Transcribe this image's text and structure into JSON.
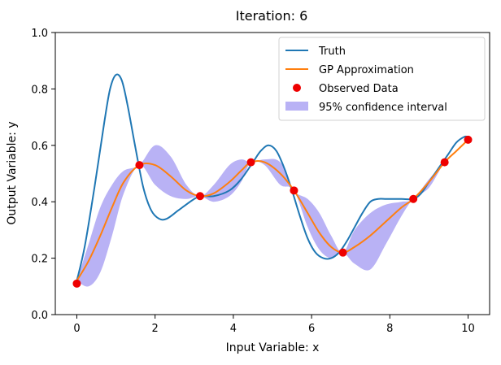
{
  "chart_data": {
    "type": "line",
    "title": "Iteration: 6",
    "xlabel": "Input Variable: x",
    "ylabel": "Output Variable: y",
    "xlim": [
      -0.55,
      10.55
    ],
    "ylim": [
      0.0,
      1.0
    ],
    "xticks": [
      0,
      2,
      4,
      6,
      8,
      10
    ],
    "yticks": [
      0.0,
      0.2,
      0.4,
      0.6,
      0.8,
      1.0
    ],
    "xtick_labels": [
      "0",
      "2",
      "4",
      "6",
      "8",
      "10"
    ],
    "ytick_labels": [
      "0.0",
      "0.2",
      "0.4",
      "0.6",
      "0.8",
      "1.0"
    ],
    "grid": false,
    "legend_position": "top-right",
    "legend": [
      {
        "label": "Truth",
        "kind": "line",
        "color": "#1f77b4"
      },
      {
        "label": "GP Approximation",
        "kind": "line",
        "color": "#ff7f0e"
      },
      {
        "label": "Observed Data",
        "kind": "marker",
        "color": "#ee0000"
      },
      {
        "label": "95% confidence interval",
        "kind": "patch",
        "color": "#b9b2f5"
      }
    ],
    "series": [
      {
        "name": "Truth",
        "color": "#1f77b4",
        "x": [
          0,
          0.2,
          0.45,
          0.7,
          0.85,
          1.0,
          1.15,
          1.3,
          1.5,
          1.7,
          1.9,
          2.1,
          2.3,
          2.6,
          3.0,
          3.2,
          3.5,
          3.9,
          4.2,
          4.5,
          4.7,
          4.9,
          5.1,
          5.3,
          5.5,
          5.7,
          5.9,
          6.1,
          6.3,
          6.5,
          6.7,
          6.9,
          7.1,
          7.3,
          7.5,
          7.7,
          7.9,
          8.1,
          8.3,
          8.6,
          8.8,
          9.0,
          9.3,
          9.5,
          9.7,
          9.9,
          10.0
        ],
        "y": [
          0.12,
          0.24,
          0.45,
          0.68,
          0.8,
          0.85,
          0.83,
          0.74,
          0.59,
          0.45,
          0.37,
          0.34,
          0.34,
          0.37,
          0.41,
          0.42,
          0.42,
          0.44,
          0.48,
          0.54,
          0.58,
          0.6,
          0.58,
          0.52,
          0.44,
          0.35,
          0.27,
          0.22,
          0.2,
          0.2,
          0.22,
          0.26,
          0.31,
          0.36,
          0.4,
          0.41,
          0.41,
          0.41,
          0.41,
          0.41,
          0.43,
          0.47,
          0.53,
          0.57,
          0.61,
          0.63,
          0.63
        ]
      },
      {
        "name": "GP Approximation",
        "color": "#ff7f0e",
        "x": [
          0,
          0.3,
          0.6,
          0.9,
          1.2,
          1.6,
          2.0,
          2.4,
          2.8,
          3.15,
          3.5,
          3.9,
          4.2,
          4.45,
          4.8,
          5.2,
          5.55,
          5.9,
          6.2,
          6.5,
          6.8,
          7.1,
          7.5,
          7.9,
          8.3,
          8.6,
          9.0,
          9.4,
          9.7,
          10.0
        ],
        "y": [
          0.12,
          0.19,
          0.28,
          0.38,
          0.47,
          0.53,
          0.53,
          0.49,
          0.44,
          0.42,
          0.43,
          0.47,
          0.51,
          0.54,
          0.54,
          0.5,
          0.44,
          0.36,
          0.29,
          0.24,
          0.22,
          0.24,
          0.28,
          0.33,
          0.38,
          0.41,
          0.47,
          0.54,
          0.58,
          0.62
        ]
      }
    ],
    "confidence_interval": {
      "name": "95% confidence interval",
      "color": "#b9b2f5",
      "x": [
        0,
        0.3,
        0.6,
        0.9,
        1.2,
        1.6,
        2.0,
        2.4,
        2.8,
        3.15,
        3.5,
        3.9,
        4.2,
        4.45,
        4.8,
        5.2,
        5.55,
        5.9,
        6.2,
        6.5,
        6.8,
        7.1,
        7.5,
        7.9,
        8.3,
        8.6,
        9.0,
        9.4,
        9.7,
        10.0
      ],
      "upper": [
        0.12,
        0.25,
        0.38,
        0.46,
        0.51,
        0.53,
        0.6,
        0.56,
        0.46,
        0.42,
        0.46,
        0.53,
        0.55,
        0.54,
        0.55,
        0.54,
        0.44,
        0.41,
        0.36,
        0.28,
        0.22,
        0.3,
        0.36,
        0.39,
        0.4,
        0.41,
        0.48,
        0.54,
        0.58,
        0.62
      ],
      "lower": [
        0.12,
        0.1,
        0.15,
        0.28,
        0.43,
        0.53,
        0.46,
        0.42,
        0.41,
        0.42,
        0.4,
        0.42,
        0.47,
        0.54,
        0.53,
        0.46,
        0.44,
        0.31,
        0.23,
        0.2,
        0.22,
        0.18,
        0.16,
        0.25,
        0.35,
        0.41,
        0.45,
        0.54,
        0.58,
        0.62
      ]
    },
    "observed": {
      "name": "Observed Data",
      "color": "#ee0000",
      "x": [
        0.0,
        1.6,
        3.15,
        4.45,
        5.55,
        6.8,
        8.6,
        9.4,
        10.0
      ],
      "y": [
        0.11,
        0.53,
        0.42,
        0.54,
        0.44,
        0.22,
        0.41,
        0.54,
        0.62
      ]
    }
  }
}
